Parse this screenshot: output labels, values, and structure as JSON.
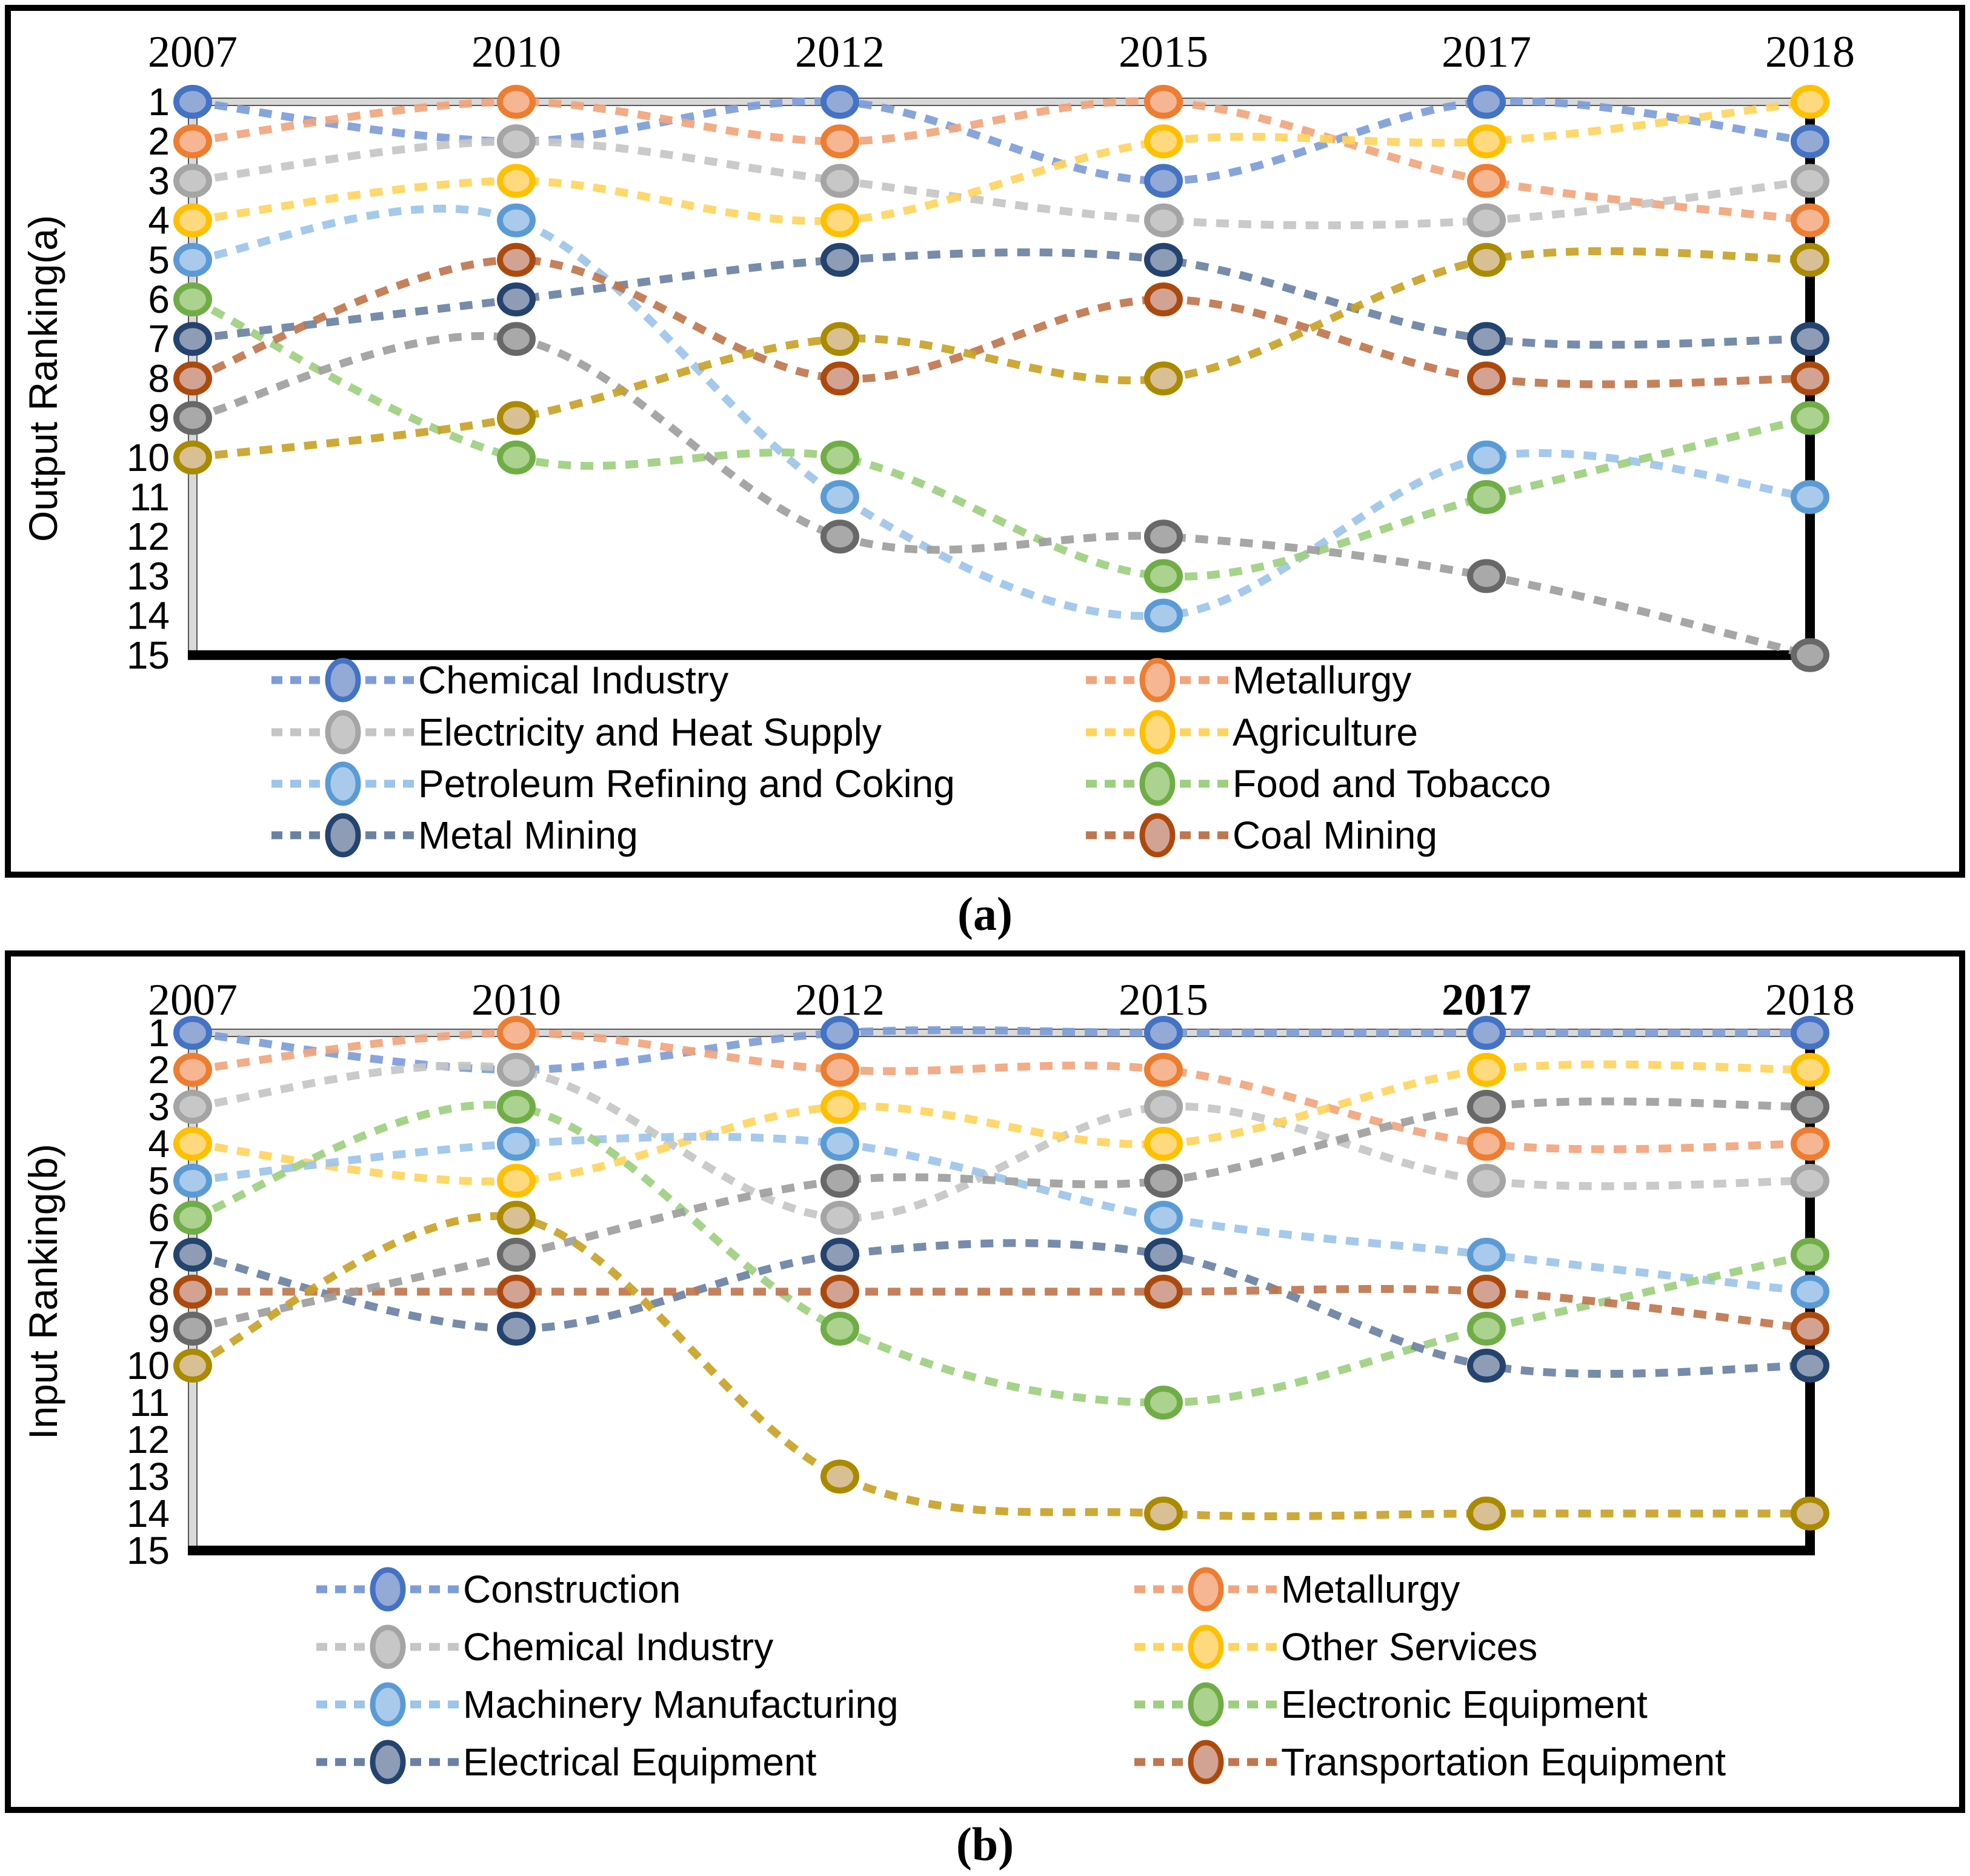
{
  "chart_data": [
    {
      "type": "line",
      "variant": "bump-ranking",
      "panel_caption": "(a)",
      "ylabel": "Output Ranking(a)",
      "x_categories": [
        "2007",
        "2010",
        "2012",
        "2015",
        "2017",
        "2018"
      ],
      "bold_x_label": null,
      "y_ticks": [
        1,
        2,
        3,
        4,
        5,
        6,
        7,
        8,
        9,
        10,
        11,
        12,
        13,
        14,
        15
      ],
      "ylim": [
        1,
        15
      ],
      "grid": false,
      "legend_position": "bottom-two-columns",
      "series": [
        {
          "name": "Chemical Industry",
          "in_legend": true,
          "legend_column": 0,
          "marker_border": "#4472C4",
          "marker_fill": "#93A9D6",
          "line_color": "#7E9DD8",
          "values": [
            1,
            2,
            1,
            3,
            1,
            2
          ]
        },
        {
          "name": "Metallurgy",
          "in_legend": true,
          "legend_column": 1,
          "marker_border": "#ED7D31",
          "marker_fill": "#F6B694",
          "line_color": "#F1A57D",
          "values": [
            2,
            1,
            2,
            1,
            3,
            4
          ]
        },
        {
          "name": "Electricity and Heat Supply",
          "in_legend": true,
          "legend_column": 0,
          "marker_border": "#A5A5A5",
          "marker_fill": "#C7C7C7",
          "line_color": "#C5C5C5",
          "values": [
            3,
            2,
            3,
            4,
            4,
            3
          ]
        },
        {
          "name": "Agriculture",
          "in_legend": true,
          "legend_column": 1,
          "marker_border": "#FFC000",
          "marker_fill": "#FFD97E",
          "line_color": "#FFD45E",
          "values": [
            4,
            3,
            4,
            2,
            2,
            1
          ]
        },
        {
          "name": "Petroleum Refining and Coking",
          "in_legend": true,
          "legend_column": 0,
          "marker_border": "#5B9BD5",
          "marker_fill": "#A9CAEB",
          "line_color": "#9DC4EA",
          "values": [
            5,
            4,
            11,
            14,
            10,
            11
          ]
        },
        {
          "name": "Food and Tobacco",
          "in_legend": true,
          "legend_column": 1,
          "marker_border": "#70AD47",
          "marker_fill": "#ACD28F",
          "line_color": "#9ECF80",
          "values": [
            6,
            10,
            10,
            13,
            11,
            9
          ]
        },
        {
          "name": "Metal Mining",
          "in_legend": true,
          "legend_column": 0,
          "marker_border": "#24436F",
          "marker_fill": "#8E9CB5",
          "line_color": "#6B81A3",
          "values": [
            7,
            6,
            5,
            5,
            7,
            7
          ]
        },
        {
          "name": "Coal Mining",
          "in_legend": true,
          "legend_column": 1,
          "marker_border": "#AC4A0E",
          "marker_fill": "#D2A292",
          "line_color": "#C0764E",
          "values": [
            8,
            5,
            8,
            6,
            8,
            8
          ]
        },
        {
          "name": "",
          "in_legend": false,
          "marker_border": "#686868",
          "marker_fill": "#A9A9A9",
          "line_color": "#9E9E9E",
          "values": [
            9,
            7,
            12,
            12,
            13,
            15
          ]
        },
        {
          "name": "",
          "in_legend": false,
          "marker_border": "#A98A00",
          "marker_fill": "#D9BF94",
          "line_color": "#C9A227",
          "values": [
            10,
            9,
            7,
            8,
            5,
            5
          ]
        }
      ]
    },
    {
      "type": "line",
      "variant": "bump-ranking",
      "panel_caption": "(b)",
      "ylabel": "Input Ranking(b)",
      "x_categories": [
        "2007",
        "2010",
        "2012",
        "2015",
        "2017",
        "2018"
      ],
      "bold_x_label": "2017",
      "y_ticks": [
        1,
        2,
        3,
        4,
        5,
        6,
        7,
        8,
        9,
        10,
        11,
        12,
        13,
        14,
        15
      ],
      "ylim": [
        1,
        15
      ],
      "grid": false,
      "legend_position": "bottom-two-columns",
      "series": [
        {
          "name": "Construction",
          "in_legend": true,
          "legend_column": 0,
          "marker_border": "#4472C4",
          "marker_fill": "#93A9D6",
          "line_color": "#7E9DD8",
          "values": [
            1,
            2,
            1,
            1,
            1,
            1
          ]
        },
        {
          "name": "Metallurgy",
          "in_legend": true,
          "legend_column": 1,
          "marker_border": "#ED7D31",
          "marker_fill": "#F6B694",
          "line_color": "#F1A57D",
          "values": [
            2,
            1,
            2,
            2,
            4,
            4
          ]
        },
        {
          "name": "Chemical Industry",
          "in_legend": true,
          "legend_column": 0,
          "marker_border": "#A5A5A5",
          "marker_fill": "#C7C7C7",
          "line_color": "#C5C5C5",
          "values": [
            3,
            2,
            6,
            3,
            5,
            5
          ]
        },
        {
          "name": "Other Services",
          "in_legend": true,
          "legend_column": 1,
          "marker_border": "#FFC000",
          "marker_fill": "#FFD97E",
          "line_color": "#FFD45E",
          "values": [
            4,
            5,
            3,
            4,
            2,
            2
          ]
        },
        {
          "name": "Machinery Manufacturing",
          "in_legend": true,
          "legend_column": 0,
          "marker_border": "#5B9BD5",
          "marker_fill": "#A9CAEB",
          "line_color": "#9DC4EA",
          "values": [
            5,
            4,
            4,
            6,
            7,
            8
          ]
        },
        {
          "name": "Electronic Equipment",
          "in_legend": true,
          "legend_column": 1,
          "marker_border": "#70AD47",
          "marker_fill": "#ACD28F",
          "line_color": "#9ECF80",
          "values": [
            6,
            3,
            9,
            11,
            9,
            7
          ]
        },
        {
          "name": "Electrical Equipment",
          "in_legend": true,
          "legend_column": 0,
          "marker_border": "#24436F",
          "marker_fill": "#8E9CB5",
          "line_color": "#6B81A3",
          "values": [
            7,
            9,
            7,
            7,
            10,
            10
          ]
        },
        {
          "name": "Transportation Equipment",
          "in_legend": true,
          "legend_column": 1,
          "marker_border": "#AC4A0E",
          "marker_fill": "#D2A292",
          "line_color": "#C0764E",
          "values": [
            8,
            8,
            8,
            8,
            8,
            9
          ]
        },
        {
          "name": "",
          "in_legend": false,
          "marker_border": "#686868",
          "marker_fill": "#A9A9A9",
          "line_color": "#9E9E9E",
          "values": [
            9,
            7,
            5,
            5,
            3,
            3
          ]
        },
        {
          "name": "",
          "in_legend": false,
          "marker_border": "#A98A00",
          "marker_fill": "#D9BF94",
          "line_color": "#C9A227",
          "values": [
            10,
            6,
            13,
            14,
            14,
            14
          ]
        }
      ]
    }
  ]
}
